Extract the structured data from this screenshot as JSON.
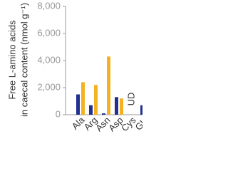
{
  "chart_data": {
    "type": "bar",
    "y_label": [
      "Free L-amino acids",
      "in caecal content (nmol g⁻¹)"
    ],
    "categories": [
      "Ala",
      "Arg",
      "Asn",
      "Asp",
      "Cys",
      "Gln"
    ],
    "series": [
      {
        "color": "#22308f",
        "values": [
          1500,
          700,
          100,
          1300,
          null,
          700
        ]
      },
      {
        "color": "#f4b223",
        "values": [
          2400,
          2200,
          4300,
          1200,
          null,
          null
        ]
      }
    ],
    "annotation": "UD",
    "ylim": [
      0,
      8000
    ],
    "yticks": [
      0,
      {
        "value": 2000,
        "label": "2,000"
      },
      {
        "value": 4000,
        "label": "4,000"
      },
      {
        "value": 6000,
        "label": "6,000"
      },
      {
        "value": 8000,
        "label": "8,000"
      }
    ]
  }
}
